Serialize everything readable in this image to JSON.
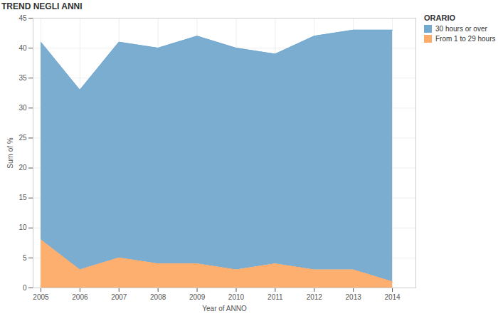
{
  "chart_data": {
    "type": "area",
    "title": "TREND NEGLI ANNI",
    "x_label": "Year of ANNO",
    "y_label": "Sum of %",
    "legend_title": "ORARIO",
    "x": [
      2005,
      2006,
      2007,
      2008,
      2009,
      2010,
      2011,
      2012,
      2013,
      2014
    ],
    "series": [
      {
        "name": "30 hours or over",
        "color": "#74a9cf",
        "values": [
          33,
          30,
          36,
          36,
          38,
          37,
          35,
          39,
          40,
          42
        ]
      },
      {
        "name": "From 1 to 29 hours",
        "color": "#fdab68",
        "values": [
          8,
          3,
          5,
          4,
          4,
          3,
          4,
          3,
          3,
          1
        ]
      }
    ],
    "xlim": [
      2004.8,
      2014.6
    ],
    "xticks": [
      2005,
      2006,
      2007,
      2008,
      2009,
      2010,
      2011,
      2012,
      2013,
      2014
    ],
    "ylim": [
      0,
      45
    ],
    "yticks": [
      0,
      5,
      10,
      15,
      20,
      25,
      30,
      35,
      40,
      45
    ],
    "stacked": true,
    "grid": true,
    "legend": "right"
  }
}
